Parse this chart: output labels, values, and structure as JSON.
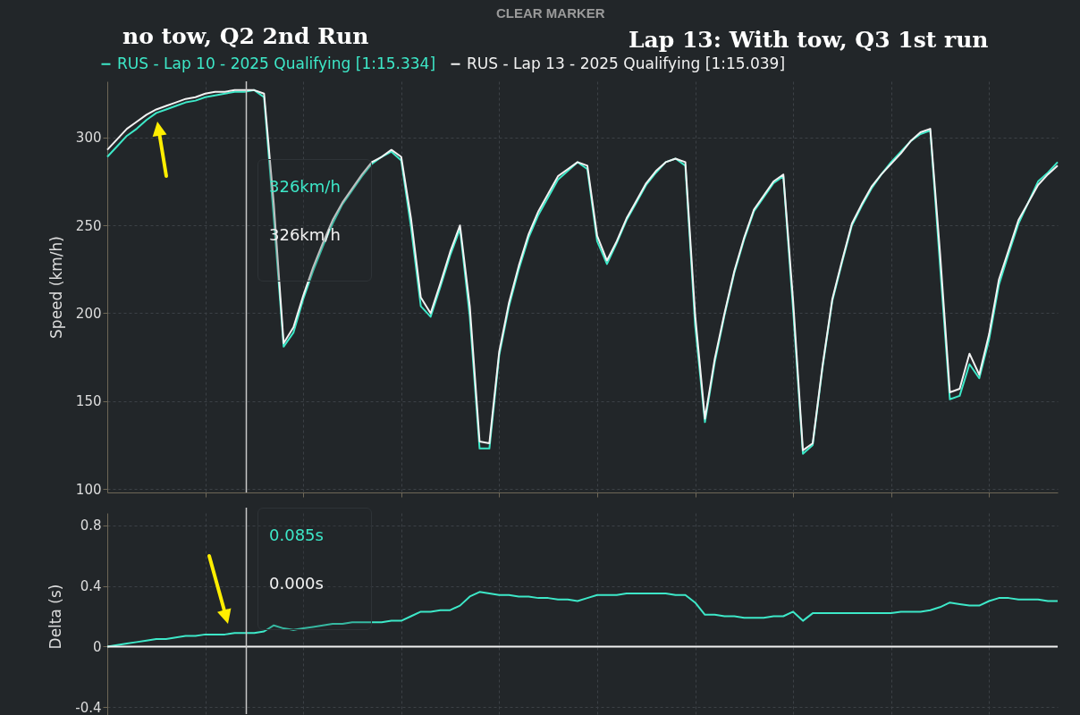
{
  "chart_data": [
    {
      "type": "line",
      "ylabel": "Speed (km/h)",
      "legend": "top",
      "grid": true,
      "tick_labels": "y",
      "marker": "none",
      "line_style": "solid",
      "annotations": [
        "no tow, Q2 2nd Run",
        "Lap 13: With tow, Q3 1st run",
        "CLEAR MARKER",
        "326km/h",
        "326km/h"
      ],
      "categories": [
        null,
        null,
        null,
        null,
        null,
        null,
        null,
        null,
        null,
        null,
        null,
        null,
        null,
        null,
        null,
        null,
        null,
        null,
        null,
        null,
        null,
        null,
        null,
        null,
        null,
        null,
        null,
        null,
        null,
        null,
        null,
        null,
        null,
        null,
        null,
        null,
        null,
        null,
        null,
        null,
        null,
        null,
        null,
        null,
        null,
        null,
        null,
        null,
        null,
        null,
        null,
        null,
        null,
        null,
        null,
        null,
        null,
        null,
        null,
        null,
        null,
        null,
        null,
        null,
        null,
        null,
        null,
        null,
        null,
        null,
        null,
        null,
        null,
        null,
        null,
        null,
        null,
        null,
        null,
        null,
        null,
        null,
        null,
        null,
        null,
        null,
        null,
        null,
        null,
        null,
        null,
        null,
        null,
        null,
        null,
        null,
        null,
        null
      ],
      "series": [
        {
          "name": "RUS - Lap 10 - 2025 Qualifying [1:15.334]",
          "color": "#3de8c8",
          "values": [
            289,
            295,
            301,
            305,
            310,
            314,
            316,
            318,
            320,
            321,
            323,
            324,
            325,
            326,
            326,
            327,
            323,
            254,
            181,
            189,
            208,
            224,
            238,
            251,
            262,
            270,
            278,
            285,
            289,
            292,
            287,
            249,
            204,
            198,
            215,
            233,
            248,
            198,
            123,
            123,
            176,
            204,
            225,
            243,
            256,
            266,
            276,
            281,
            286,
            282,
            241,
            228,
            240,
            253,
            263,
            273,
            280,
            286,
            288,
            284,
            193,
            138,
            172,
            199,
            223,
            242,
            258,
            266,
            274,
            278,
            202,
            120,
            125,
            169,
            207,
            229,
            250,
            261,
            271,
            279,
            286,
            292,
            298,
            302,
            304,
            227,
            151,
            153,
            171,
            163,
            185,
            216,
            234,
            251,
            263,
            275,
            280,
            286
          ]
        },
        {
          "name": "RUS - Lap 13 - 2025 Qualifying [1:15.039]",
          "color": "#f2f2f2",
          "values": [
            293,
            299,
            305,
            309,
            313,
            316,
            318,
            320,
            322,
            323,
            325,
            326,
            326,
            327,
            327,
            327,
            325,
            262,
            183,
            192,
            210,
            226,
            240,
            253,
            263,
            271,
            279,
            286,
            289,
            293,
            289,
            254,
            209,
            200,
            217,
            235,
            250,
            204,
            127,
            126,
            178,
            206,
            227,
            245,
            258,
            268,
            278,
            282,
            286,
            284,
            244,
            230,
            241,
            254,
            264,
            274,
            281,
            286,
            288,
            286,
            199,
            140,
            174,
            200,
            224,
            243,
            259,
            267,
            275,
            279,
            207,
            122,
            126,
            170,
            208,
            230,
            251,
            262,
            272,
            279,
            285,
            291,
            298,
            303,
            305,
            234,
            155,
            157,
            177,
            165,
            188,
            219,
            236,
            253,
            263,
            273,
            279,
            284
          ]
        }
      ],
      "ylim": [
        98,
        332
      ],
      "yticks": [
        100,
        150,
        200,
        250,
        300
      ]
    },
    {
      "type": "line",
      "ylabel": "Delta (s)",
      "grid": true,
      "tick_labels": "y",
      "marker": "none",
      "line_style": "solid",
      "annotations": [
        "0.085s",
        "0.000s"
      ],
      "categories": [
        null,
        null,
        null,
        null,
        null,
        null,
        null,
        null,
        null,
        null,
        null,
        null,
        null,
        null,
        null,
        null,
        null,
        null,
        null,
        null,
        null,
        null,
        null,
        null,
        null,
        null,
        null,
        null,
        null,
        null,
        null,
        null,
        null,
        null,
        null,
        null,
        null,
        null,
        null,
        null,
        null,
        null,
        null,
        null,
        null,
        null,
        null,
        null,
        null,
        null,
        null,
        null,
        null,
        null,
        null,
        null,
        null,
        null,
        null,
        null,
        null,
        null,
        null,
        null,
        null,
        null,
        null,
        null,
        null,
        null,
        null,
        null,
        null,
        null,
        null,
        null,
        null,
        null,
        null,
        null,
        null,
        null,
        null,
        null,
        null,
        null,
        null,
        null,
        null,
        null,
        null,
        null,
        null,
        null,
        null,
        null,
        null,
        null
      ],
      "series": [
        {
          "color": "#3de8c8",
          "values": [
            0,
            0.01,
            0.02,
            0.03,
            0.04,
            0.05,
            0.05,
            0.06,
            0.07,
            0.07,
            0.08,
            0.08,
            0.08,
            0.09,
            0.09,
            0.09,
            0.1,
            0.14,
            0.12,
            0.11,
            0.12,
            0.13,
            0.14,
            0.15,
            0.15,
            0.16,
            0.16,
            0.16,
            0.16,
            0.17,
            0.17,
            0.2,
            0.23,
            0.23,
            0.24,
            0.24,
            0.27,
            0.33,
            0.36,
            0.35,
            0.34,
            0.34,
            0.33,
            0.33,
            0.32,
            0.32,
            0.31,
            0.31,
            0.3,
            0.32,
            0.34,
            0.34,
            0.34,
            0.35,
            0.35,
            0.35,
            0.35,
            0.35,
            0.34,
            0.34,
            0.29,
            0.21,
            0.21,
            0.2,
            0.2,
            0.19,
            0.19,
            0.19,
            0.2,
            0.2,
            0.23,
            0.17,
            0.22,
            0.22,
            0.22,
            0.22,
            0.22,
            0.22,
            0.22,
            0.22,
            0.22,
            0.23,
            0.23,
            0.23,
            0.24,
            0.26,
            0.29,
            0.28,
            0.27,
            0.27,
            0.3,
            0.32,
            0.32,
            0.31,
            0.31,
            0.31,
            0.3,
            0.3
          ]
        },
        {
          "color": "#f2f2f2",
          "values": [
            0,
            0,
            0,
            0,
            0,
            0,
            0,
            0,
            0,
            0,
            0,
            0,
            0,
            0,
            0,
            0,
            0,
            0,
            0,
            0,
            0,
            0,
            0,
            0,
            0,
            0,
            0,
            0,
            0,
            0,
            0,
            0,
            0,
            0,
            0,
            0,
            0,
            0,
            0,
            0,
            0,
            0,
            0,
            0,
            0,
            0,
            0,
            0,
            0,
            0,
            0,
            0,
            0,
            0,
            0,
            0,
            0,
            0,
            0,
            0,
            0,
            0,
            0,
            0,
            0,
            0,
            0,
            0,
            0,
            0,
            0,
            0,
            0,
            0,
            0,
            0,
            0,
            0,
            0,
            0,
            0,
            0,
            0,
            0,
            0,
            0,
            0,
            0,
            0,
            0,
            0,
            0,
            0,
            0,
            0,
            0,
            0,
            0
          ]
        }
      ],
      "ylim": [
        -0.48,
        0.88
      ],
      "yticks": [
        -0.4,
        0,
        0.4,
        0.8
      ]
    }
  ]
}
